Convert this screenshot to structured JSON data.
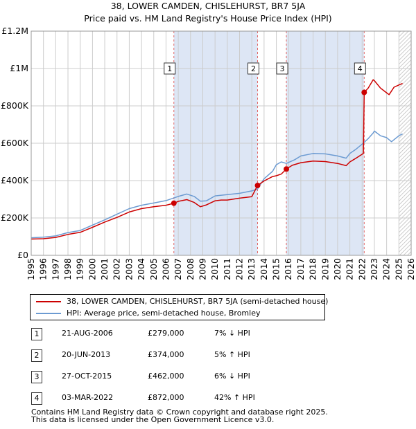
{
  "title": {
    "line1": "38, LOWER CAMDEN, CHISLEHURST, BR7 5JA",
    "line2": "Price paid vs. HM Land Registry's House Price Index (HPI)"
  },
  "colors": {
    "property_line": "#cc0000",
    "hpi_line": "#6c9bd2",
    "shade": "#dde6f5",
    "grid": "#cccccc",
    "vline": "#e06666"
  },
  "chart_data": {
    "type": "line",
    "title": "38, LOWER CAMDEN, CHISLEHURST, BR7 5JA — Price paid vs. HM Land Registry's House Price Index (HPI)",
    "xlim": [
      1995,
      2026
    ],
    "ylim": [
      0,
      1200000
    ],
    "yticks": [
      0,
      200000,
      400000,
      600000,
      800000,
      1000000,
      1200000
    ],
    "ytick_labels": [
      "£0",
      "£200K",
      "£400K",
      "£600K",
      "£800K",
      "£1M",
      "£1.2M"
    ],
    "xticks": [
      1995,
      1996,
      1997,
      1998,
      1999,
      2000,
      2001,
      2002,
      2003,
      2004,
      2005,
      2006,
      2007,
      2008,
      2009,
      2010,
      2011,
      2012,
      2013,
      2014,
      2015,
      2016,
      2017,
      2018,
      2019,
      2020,
      2021,
      2022,
      2023,
      2024,
      2025,
      2026
    ],
    "shaded_ranges": [
      [
        2006.64,
        2013.47
      ],
      [
        2015.82,
        2022.17
      ]
    ],
    "hatched_from": 2025.0,
    "series": [
      {
        "name": "38, LOWER CAMDEN, CHISLEHURST, BR7 5JA (semi-detached house)",
        "x": [
          1995,
          1996,
          1997,
          1998,
          1999,
          2000,
          2001,
          2002,
          2003,
          2004,
          2005,
          2006,
          2006.64,
          2007,
          2007.7,
          2008.3,
          2008.8,
          2009.3,
          2010,
          2010.5,
          2011,
          2012,
          2013,
          2013.47,
          2014,
          2014.7,
          2015,
          2015.4,
          2015.82,
          2016.3,
          2017,
          2018,
          2019,
          2020,
          2020.7,
          2021,
          2021.5,
          2022.1,
          2022.17,
          2022.5,
          2022.9,
          2023,
          2023.5,
          2024,
          2024.2,
          2024.6,
          2025,
          2025.3
        ],
        "y": [
          87000,
          89000,
          96000,
          112000,
          123000,
          150000,
          178000,
          203000,
          232000,
          250000,
          260000,
          268000,
          279000,
          289000,
          298000,
          283000,
          260000,
          270000,
          292000,
          296000,
          296000,
          306000,
          314000,
          374000,
          398000,
          422000,
          426000,
          435000,
          462000,
          482000,
          496000,
          505000,
          502000,
          492000,
          480000,
          500000,
          520000,
          545000,
          872000,
          895000,
          940000,
          935000,
          895000,
          870000,
          860000,
          900000,
          912000,
          920000
        ]
      },
      {
        "name": "HPI: Average price, semi-detached house, Bromley",
        "x": [
          1995,
          1996,
          1997,
          1998,
          1999,
          2000,
          2001,
          2002,
          2003,
          2004,
          2005,
          2006,
          2007,
          2007.7,
          2008.3,
          2008.8,
          2009.3,
          2010,
          2011,
          2012,
          2013,
          2013.47,
          2014,
          2014.7,
          2015,
          2015.4,
          2015.82,
          2016.5,
          2017,
          2018,
          2019,
          2020,
          2020.7,
          2021,
          2021.5,
          2022,
          2022.5,
          2022.9,
          2023,
          2023.5,
          2024,
          2024.4,
          2025,
          2025.3
        ],
        "y": [
          94000,
          97000,
          104000,
          122000,
          133000,
          162000,
          190000,
          220000,
          250000,
          268000,
          280000,
          293000,
          315000,
          328000,
          315000,
          290000,
          292000,
          318000,
          325000,
          332000,
          345000,
          355000,
          410000,
          450000,
          485000,
          500000,
          492000,
          512000,
          532000,
          545000,
          543000,
          532000,
          520000,
          545000,
          568000,
          595000,
          625000,
          655000,
          665000,
          640000,
          630000,
          608000,
          640000,
          650000
        ]
      }
    ],
    "sales": [
      {
        "id": "1",
        "x": 2006.64,
        "y": 279000
      },
      {
        "id": "2",
        "x": 2013.47,
        "y": 374000
      },
      {
        "id": "3",
        "x": 2015.82,
        "y": 462000
      },
      {
        "id": "4",
        "x": 2022.17,
        "y": 872000
      }
    ],
    "marker_label_y": 1000000
  },
  "legend": {
    "property": "38, LOWER CAMDEN, CHISLEHURST, BR7 5JA (semi-detached house)",
    "hpi": "HPI: Average price, semi-detached house, Bromley"
  },
  "transactions": [
    {
      "num": "1",
      "date": "21-AUG-2006",
      "price": "£279,000",
      "hpi": "7% ↓ HPI"
    },
    {
      "num": "2",
      "date": "20-JUN-2013",
      "price": "£374,000",
      "hpi": "5% ↑ HPI"
    },
    {
      "num": "3",
      "date": "27-OCT-2015",
      "price": "£462,000",
      "hpi": "6% ↓ HPI"
    },
    {
      "num": "4",
      "date": "03-MAR-2022",
      "price": "£872,000",
      "hpi": "42% ↑ HPI"
    }
  ],
  "footer": {
    "line1": "Contains HM Land Registry data © Crown copyright and database right 2025.",
    "line2": "This data is licensed under the Open Government Licence v3.0."
  }
}
